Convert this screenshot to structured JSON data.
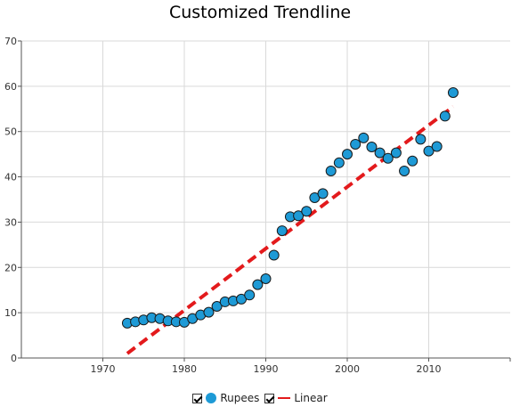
{
  "chart_data": {
    "type": "scatter",
    "title": "Customized Trendline",
    "xlim": [
      1960,
      2020
    ],
    "ylim": [
      0,
      70
    ],
    "x_ticks": [
      1970,
      1980,
      1990,
      2000,
      2010
    ],
    "y_ticks": [
      0,
      10,
      20,
      30,
      40,
      50,
      60,
      70
    ],
    "grid": true,
    "legend_position": "bottom-center",
    "series": [
      {
        "name": "Rupees",
        "color": "#1e9ad6",
        "x": [
          1973,
          1974,
          1975,
          1976,
          1977,
          1978,
          1979,
          1980,
          1981,
          1982,
          1983,
          1984,
          1985,
          1986,
          1987,
          1988,
          1989,
          1990,
          1991,
          1992,
          1993,
          1994,
          1995,
          1996,
          1997,
          1998,
          1999,
          2000,
          2001,
          2002,
          2003,
          2004,
          2005,
          2006,
          2007,
          2008,
          2009,
          2010,
          2011,
          2012,
          2013
        ],
        "y": [
          7.7,
          8.0,
          8.4,
          8.9,
          8.7,
          8.2,
          8.0,
          7.9,
          8.7,
          9.5,
          10.1,
          11.4,
          12.4,
          12.6,
          13.0,
          13.9,
          16.2,
          17.5,
          22.7,
          28.1,
          31.2,
          31.4,
          32.4,
          35.4,
          36.3,
          41.3,
          43.1,
          45.0,
          47.2,
          48.6,
          46.6,
          45.3,
          44.1,
          45.3,
          41.3,
          43.5,
          48.3,
          45.7,
          46.7,
          53.4,
          58.6
        ]
      }
    ],
    "trendline": {
      "name": "Linear",
      "type": "linear",
      "color": "#e31a1c",
      "dashed": true,
      "x": [
        1973,
        2013
      ],
      "y": [
        1.0,
        55.5
      ]
    }
  },
  "legend": {
    "series_label": "Rupees",
    "trendline_label": "Linear"
  }
}
